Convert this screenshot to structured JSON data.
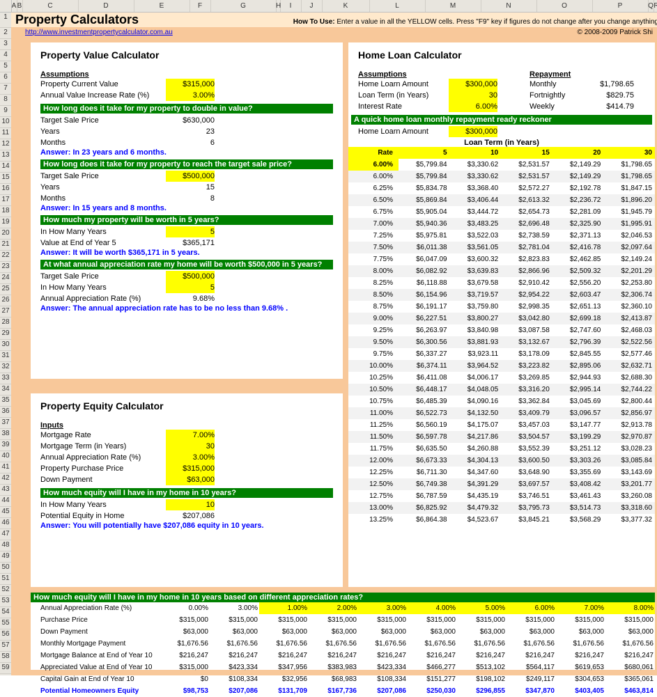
{
  "title": "Property Calculators",
  "howto_label": "How To Use:",
  "howto_text": " Enter a value in all the YELLOW cells. Press \"F9\" key if figures do not change after you change anything",
  "link": "http://www.investmentpropertycalculator.com.au",
  "copyright": "© 2008-2009 Patrick Shi",
  "colheaders": [
    "A",
    "B",
    "C",
    "D",
    "E",
    "F",
    "G",
    "H",
    "I",
    "J",
    "K",
    "L",
    "M",
    "N",
    "O",
    "P",
    "Q",
    "R"
  ],
  "p1": {
    "title": "Property Value Calculator",
    "assumptions": "Assumptions",
    "pcv_lbl": "Property Current Value",
    "pcv": "$315,000",
    "avir_lbl": "Annual Value Increase Rate (%)",
    "avir": "3.00%",
    "q1": "How long does it take for my property to double in value?",
    "tsp_lbl": "Target Sale Price",
    "tsp1": "$630,000",
    "yrs_lbl": "Years",
    "yrs1": "23",
    "mon_lbl": "Months",
    "mon1": "6",
    "ans1": "Answer: In 23 years and 6 months.",
    "q2": "How long does it take for my property to reach the target sale price?",
    "tsp2": "$500,000",
    "yrs2": "15",
    "mon2": "8",
    "ans2": "Answer: In 15 years and 8 months.",
    "q3": "How much my property will be worth in 5 years?",
    "ihmy_lbl": "In How Many Years",
    "ihmy": "5",
    "vey_lbl": "Value at End of Year 5",
    "vey": "$365,171",
    "ans3": "Answer: It will be worth $365,171 in 5 years.",
    "q4": "At what annual appreciation rate my home will be worth $500,000 in 5 years?",
    "tsp4": "$500,000",
    "ihmy4": "5",
    "aar_lbl": "Annual Appreciation Rate (%)",
    "aar": "9.68%",
    "ans4": "Answer: The annual appreciation rate has to be no less than 9.68% ."
  },
  "p2": {
    "title": "Home Loan Calculator",
    "assumptions": "Assumptions",
    "repayment": "Repayment",
    "hla_lbl": "Home Loarn Amount",
    "hla": "$300,000",
    "lty_lbl": "Loan Term (in Years)",
    "lty": "30",
    "ir_lbl": "Interest Rate",
    "ir": "6.00%",
    "r_mon_lbl": "Monthly",
    "r_mon": "$1,798.65",
    "r_fn_lbl": "Fortnightly",
    "r_fn": "$829.75",
    "r_wk_lbl": "Weekly",
    "r_wk": "$414.79",
    "q1": "A quick home loan monthly repayment ready reckoner",
    "hla2_lbl": "Home Loarn Amount",
    "hla2": "$300,000",
    "termhdr": "Loan Term (in Years)",
    "rate_lbl": "Rate",
    "terms": [
      "5",
      "10",
      "15",
      "20",
      "30"
    ],
    "rows": [
      {
        "r": "6.00%",
        "v": [
          "$5,799.84",
          "$3,330.62",
          "$2,531.57",
          "$2,149.29",
          "$1,798.65"
        ]
      },
      {
        "r": "6.00%",
        "v": [
          "$5,799.84",
          "$3,330.62",
          "$2,531.57",
          "$2,149.29",
          "$1,798.65"
        ]
      },
      {
        "r": "6.25%",
        "v": [
          "$5,834.78",
          "$3,368.40",
          "$2,572.27",
          "$2,192.78",
          "$1,847.15"
        ]
      },
      {
        "r": "6.50%",
        "v": [
          "$5,869.84",
          "$3,406.44",
          "$2,613.32",
          "$2,236.72",
          "$1,896.20"
        ]
      },
      {
        "r": "6.75%",
        "v": [
          "$5,905.04",
          "$3,444.72",
          "$2,654.73",
          "$2,281.09",
          "$1,945.79"
        ]
      },
      {
        "r": "7.00%",
        "v": [
          "$5,940.36",
          "$3,483.25",
          "$2,696.48",
          "$2,325.90",
          "$1,995.91"
        ]
      },
      {
        "r": "7.25%",
        "v": [
          "$5,975.81",
          "$3,522.03",
          "$2,738.59",
          "$2,371.13",
          "$2,046.53"
        ]
      },
      {
        "r": "7.50%",
        "v": [
          "$6,011.38",
          "$3,561.05",
          "$2,781.04",
          "$2,416.78",
          "$2,097.64"
        ]
      },
      {
        "r": "7.75%",
        "v": [
          "$6,047.09",
          "$3,600.32",
          "$2,823.83",
          "$2,462.85",
          "$2,149.24"
        ]
      },
      {
        "r": "8.00%",
        "v": [
          "$6,082.92",
          "$3,639.83",
          "$2,866.96",
          "$2,509.32",
          "$2,201.29"
        ]
      },
      {
        "r": "8.25%",
        "v": [
          "$6,118.88",
          "$3,679.58",
          "$2,910.42",
          "$2,556.20",
          "$2,253.80"
        ]
      },
      {
        "r": "8.50%",
        "v": [
          "$6,154.96",
          "$3,719.57",
          "$2,954.22",
          "$2,603.47",
          "$2,306.74"
        ]
      },
      {
        "r": "8.75%",
        "v": [
          "$6,191.17",
          "$3,759.80",
          "$2,998.35",
          "$2,651.13",
          "$2,360.10"
        ]
      },
      {
        "r": "9.00%",
        "v": [
          "$6,227.51",
          "$3,800.27",
          "$3,042.80",
          "$2,699.18",
          "$2,413.87"
        ]
      },
      {
        "r": "9.25%",
        "v": [
          "$6,263.97",
          "$3,840.98",
          "$3,087.58",
          "$2,747.60",
          "$2,468.03"
        ]
      },
      {
        "r": "9.50%",
        "v": [
          "$6,300.56",
          "$3,881.93",
          "$3,132.67",
          "$2,796.39",
          "$2,522.56"
        ]
      },
      {
        "r": "9.75%",
        "v": [
          "$6,337.27",
          "$3,923.11",
          "$3,178.09",
          "$2,845.55",
          "$2,577.46"
        ]
      },
      {
        "r": "10.00%",
        "v": [
          "$6,374.11",
          "$3,964.52",
          "$3,223.82",
          "$2,895.06",
          "$2,632.71"
        ]
      },
      {
        "r": "10.25%",
        "v": [
          "$6,411.08",
          "$4,006.17",
          "$3,269.85",
          "$2,944.93",
          "$2,688.30"
        ]
      },
      {
        "r": "10.50%",
        "v": [
          "$6,448.17",
          "$4,048.05",
          "$3,316.20",
          "$2,995.14",
          "$2,744.22"
        ]
      },
      {
        "r": "10.75%",
        "v": [
          "$6,485.39",
          "$4,090.16",
          "$3,362.84",
          "$3,045.69",
          "$2,800.44"
        ]
      },
      {
        "r": "11.00%",
        "v": [
          "$6,522.73",
          "$4,132.50",
          "$3,409.79",
          "$3,096.57",
          "$2,856.97"
        ]
      },
      {
        "r": "11.25%",
        "v": [
          "$6,560.19",
          "$4,175.07",
          "$3,457.03",
          "$3,147.77",
          "$2,913.78"
        ]
      },
      {
        "r": "11.50%",
        "v": [
          "$6,597.78",
          "$4,217.86",
          "$3,504.57",
          "$3,199.29",
          "$2,970.87"
        ]
      },
      {
        "r": "11.75%",
        "v": [
          "$6,635.50",
          "$4,260.88",
          "$3,552.39",
          "$3,251.12",
          "$3,028.23"
        ]
      },
      {
        "r": "12.00%",
        "v": [
          "$6,673.33",
          "$4,304.13",
          "$3,600.50",
          "$3,303.26",
          "$3,085.84"
        ]
      },
      {
        "r": "12.25%",
        "v": [
          "$6,711.30",
          "$4,347.60",
          "$3,648.90",
          "$3,355.69",
          "$3,143.69"
        ]
      },
      {
        "r": "12.50%",
        "v": [
          "$6,749.38",
          "$4,391.29",
          "$3,697.57",
          "$3,408.42",
          "$3,201.77"
        ]
      },
      {
        "r": "12.75%",
        "v": [
          "$6,787.59",
          "$4,435.19",
          "$3,746.51",
          "$3,461.43",
          "$3,260.08"
        ]
      },
      {
        "r": "13.00%",
        "v": [
          "$6,825.92",
          "$4,479.32",
          "$3,795.73",
          "$3,514.73",
          "$3,318.60"
        ]
      },
      {
        "r": "13.25%",
        "v": [
          "$6,864.38",
          "$4,523.67",
          "$3,845.21",
          "$3,568.29",
          "$3,377.32"
        ]
      }
    ]
  },
  "p3": {
    "title": "Property Equity Calculator",
    "inputs": "Inputs",
    "mr_lbl": "Mortgage Rate",
    "mr": "7.00%",
    "mt_lbl": "Mortgage Term (in Years)",
    "mt": "30",
    "aar_lbl": "Annual Appreciation Rate (%)",
    "aar": "3.00%",
    "ppp_lbl": "Property Purchase Price",
    "ppp": "$315,000",
    "dp_lbl": "Down Payment",
    "dp": "$63,000",
    "q1": "How much equity will I have in my home in 10 years?",
    "ihmy_lbl": "In How Many Years",
    "ihmy": "10",
    "pe_lbl": "Potential Equity in Home",
    "pe": "$207,086",
    "ans": "Answer: You will potentially have $207,086 equity in 10 years."
  },
  "p4": {
    "q": "How much equity will I have in my home in 10 years based on different appreciation rates?",
    "labels": [
      "Annual Appreciation Rate (%)",
      "Purchase Price",
      "Down Payment",
      "Monthly Mortgage Payment",
      "Mortgage Balance at End of Year 10",
      "Appreciated Value at End of Year 10",
      "Capital Gain at End of Year 10",
      "Potential Homeowners Equity"
    ],
    "cols": [
      "0.00%",
      "3.00%",
      "1.00%",
      "2.00%",
      "3.00%",
      "4.00%",
      "5.00%",
      "6.00%",
      "7.00%",
      "8.00%"
    ],
    "rows": [
      [
        "$315,000",
        "$315,000",
        "$315,000",
        "$315,000",
        "$315,000",
        "$315,000",
        "$315,000",
        "$315,000",
        "$315,000",
        "$315,000"
      ],
      [
        "$63,000",
        "$63,000",
        "$63,000",
        "$63,000",
        "$63,000",
        "$63,000",
        "$63,000",
        "$63,000",
        "$63,000",
        "$63,000"
      ],
      [
        "$1,676.56",
        "$1,676.56",
        "$1,676.56",
        "$1,676.56",
        "$1,676.56",
        "$1,676.56",
        "$1,676.56",
        "$1,676.56",
        "$1,676.56",
        "$1,676.56"
      ],
      [
        "$216,247",
        "$216,247",
        "$216,247",
        "$216,247",
        "$216,247",
        "$216,247",
        "$216,247",
        "$216,247",
        "$216,247",
        "$216,247"
      ],
      [
        "$315,000",
        "$423,334",
        "$347,956",
        "$383,983",
        "$423,334",
        "$466,277",
        "$513,102",
        "$564,117",
        "$619,653",
        "$680,061"
      ],
      [
        "$0",
        "$108,334",
        "$32,956",
        "$68,983",
        "$108,334",
        "$151,277",
        "$198,102",
        "$249,117",
        "$304,653",
        "$365,061"
      ],
      [
        "$98,753",
        "$207,086",
        "$131,709",
        "$167,736",
        "$207,086",
        "$250,030",
        "$296,855",
        "$347,870",
        "$403,405",
        "$463,814"
      ]
    ]
  }
}
